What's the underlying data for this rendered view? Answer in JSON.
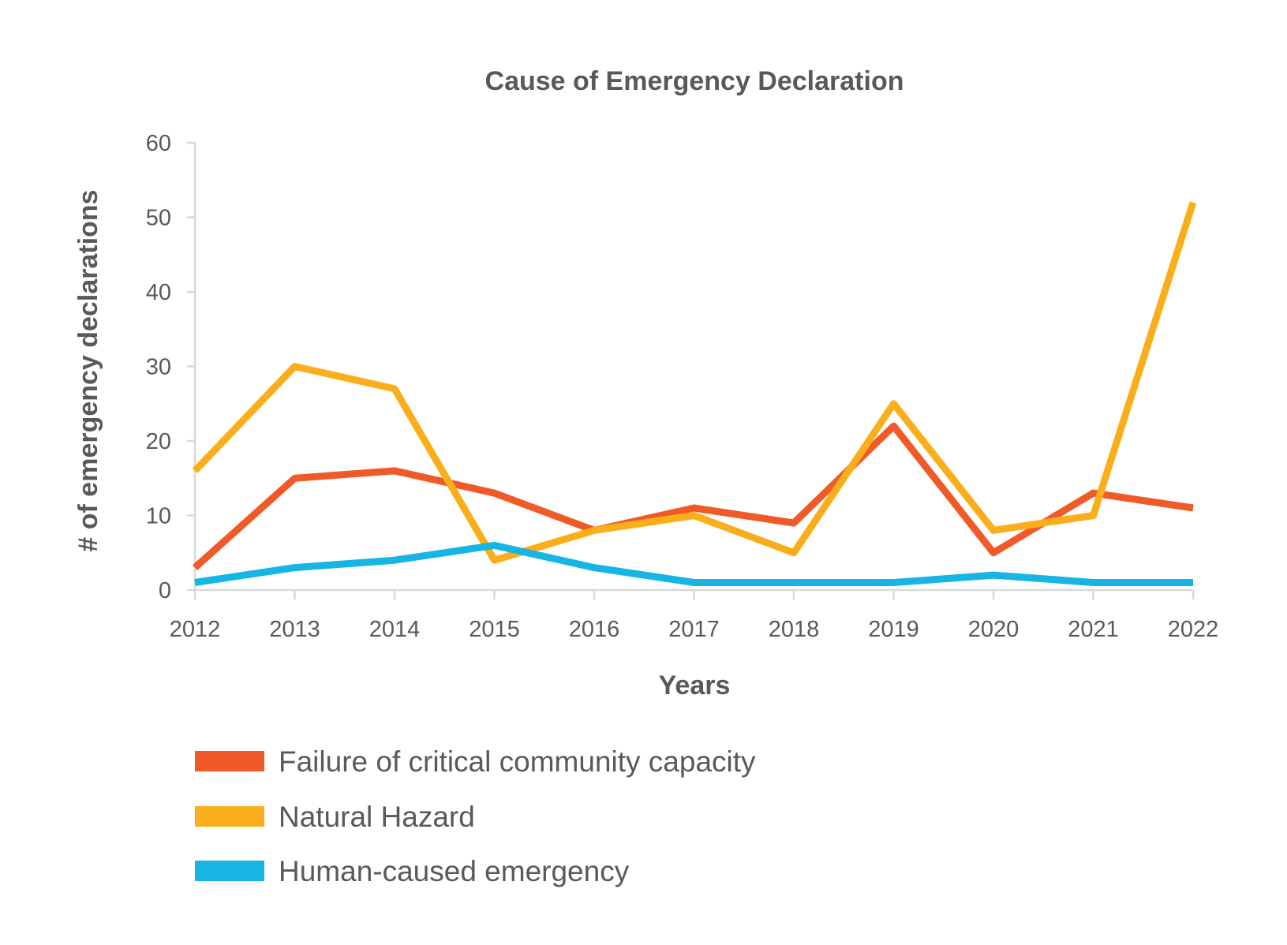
{
  "chart_data": {
    "type": "line",
    "title": "Cause of Emergency Declaration",
    "xlabel": "Years",
    "ylabel": "# of emergency declarations",
    "x": [
      "2012",
      "2013",
      "2014",
      "2015",
      "2016",
      "2017",
      "2018",
      "2019",
      "2020",
      "2021",
      "2022"
    ],
    "ylim": [
      0,
      60
    ],
    "yticks": [
      "0",
      "10",
      "20",
      "30",
      "40",
      "50",
      "60"
    ],
    "grid": false,
    "legend_position": "bottom",
    "series": [
      {
        "name": "Failure of critical community capacity",
        "color": "#f05a28",
        "values": [
          3,
          15,
          16,
          13,
          8,
          11,
          9,
          22,
          5,
          13,
          11
        ]
      },
      {
        "name": "Natural Hazard",
        "color": "#fbae1b",
        "values": [
          16,
          30,
          27,
          4,
          8,
          10,
          5,
          25,
          8,
          10,
          52
        ]
      },
      {
        "name": "Human-caused emergency",
        "color": "#16b5e4",
        "values": [
          1,
          3,
          4,
          6,
          3,
          1,
          1,
          1,
          2,
          1,
          1
        ]
      }
    ]
  }
}
